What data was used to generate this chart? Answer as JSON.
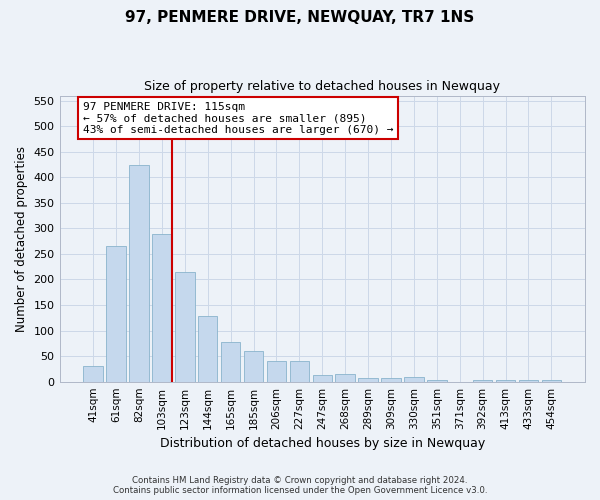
{
  "title": "97, PENMERE DRIVE, NEWQUAY, TR7 1NS",
  "subtitle": "Size of property relative to detached houses in Newquay",
  "xlabel": "Distribution of detached houses by size in Newquay",
  "ylabel": "Number of detached properties",
  "footer_line1": "Contains HM Land Registry data © Crown copyright and database right 2024.",
  "footer_line2": "Contains public sector information licensed under the Open Government Licence v3.0.",
  "bar_labels": [
    "41sqm",
    "61sqm",
    "82sqm",
    "103sqm",
    "123sqm",
    "144sqm",
    "165sqm",
    "185sqm",
    "206sqm",
    "227sqm",
    "247sqm",
    "268sqm",
    "289sqm",
    "309sqm",
    "330sqm",
    "351sqm",
    "371sqm",
    "392sqm",
    "413sqm",
    "433sqm",
    "454sqm"
  ],
  "bar_values": [
    30,
    265,
    425,
    290,
    215,
    128,
    77,
    60,
    40,
    40,
    13,
    15,
    8,
    8,
    10,
    4,
    0,
    4,
    4,
    4,
    4
  ],
  "bar_color": "#c5d8ed",
  "bar_edgecolor": "#8ab4cc",
  "grid_color": "#cdd8e8",
  "background_color": "#edf2f8",
  "vline_color": "#cc0000",
  "annotation_line1": "97 PENMERE DRIVE: 115sqm",
  "annotation_line2": "← 57% of detached houses are smaller (895)",
  "annotation_line3": "43% of semi-detached houses are larger (670) →",
  "annotation_box_color": "#ffffff",
  "ylim": [
    0,
    560
  ],
  "yticks": [
    0,
    50,
    100,
    150,
    200,
    250,
    300,
    350,
    400,
    450,
    500,
    550
  ]
}
